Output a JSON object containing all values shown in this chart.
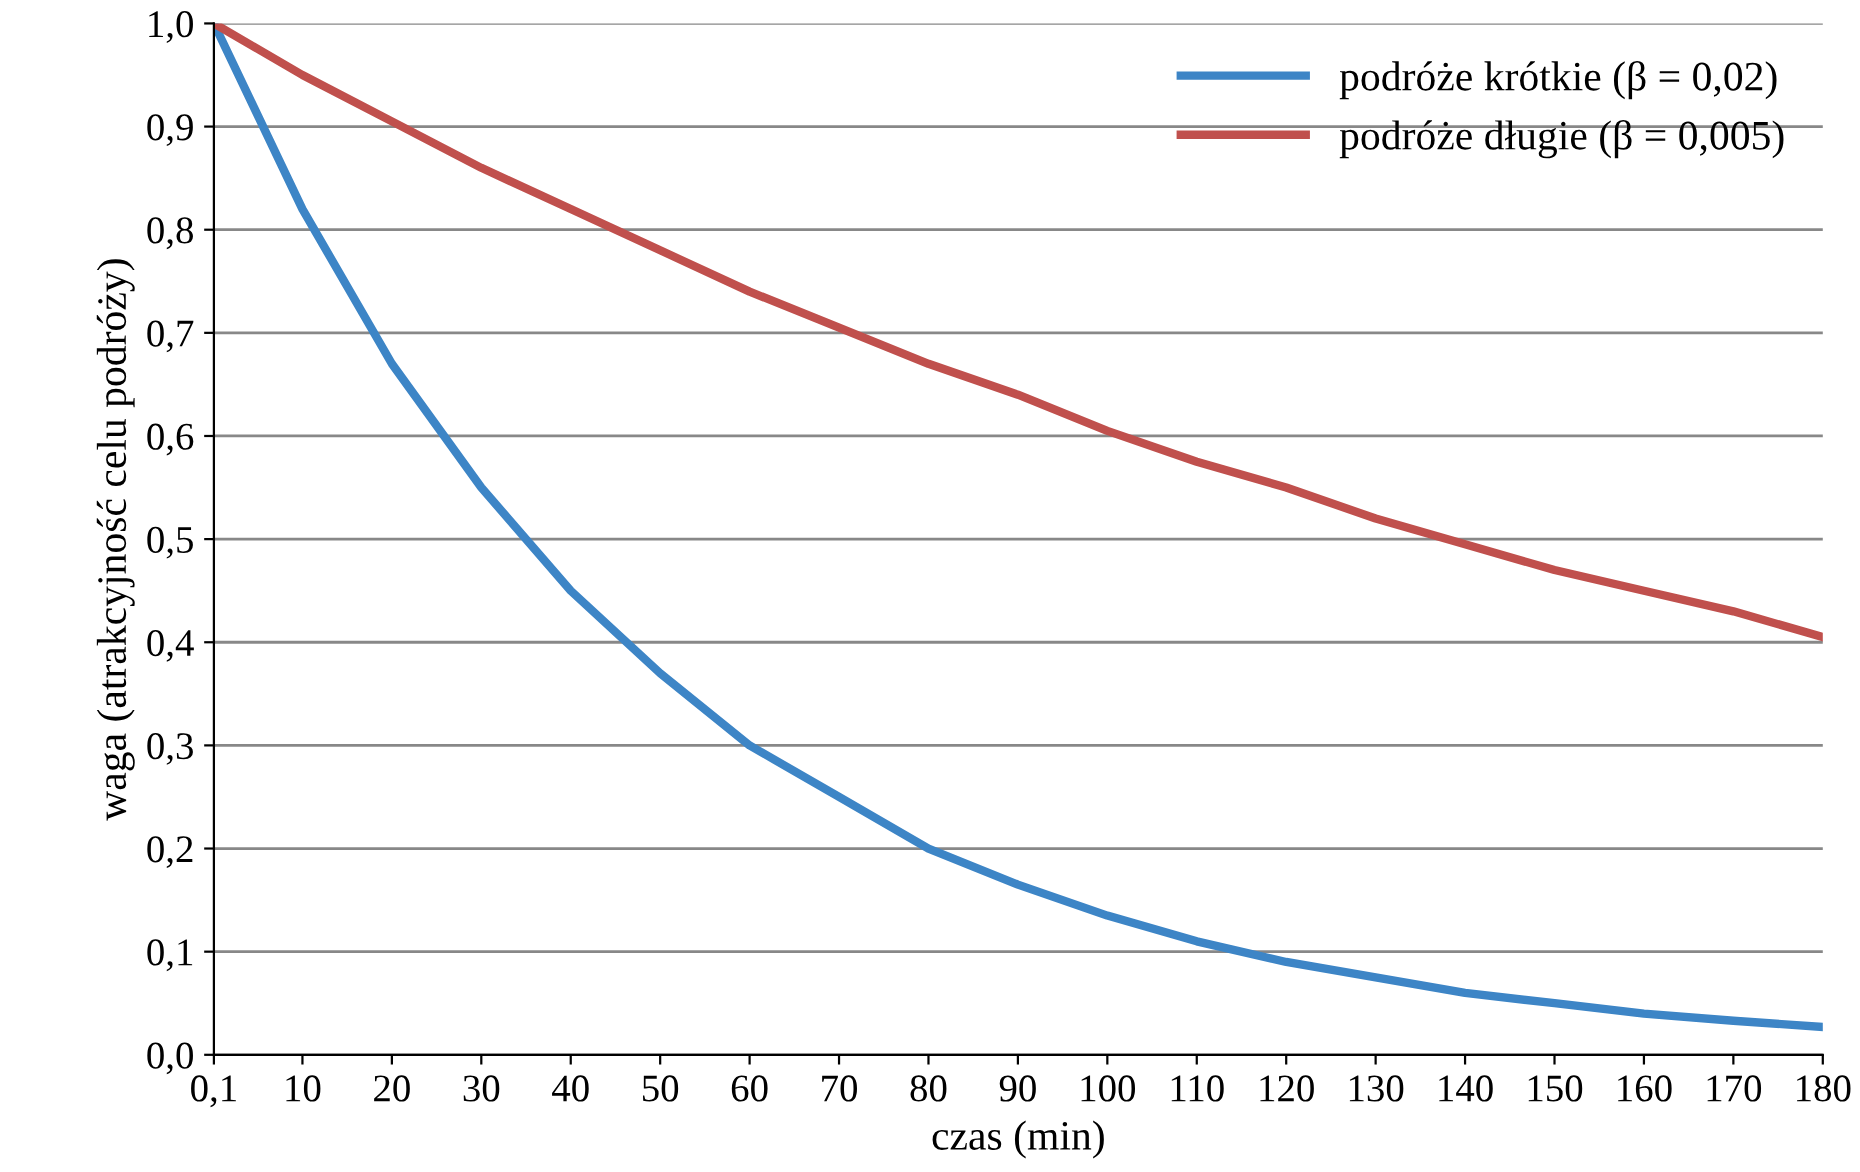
{
  "chart_data": {
    "type": "line",
    "xlabel": "czas (min)",
    "ylabel": "waga (atrakcyjność celu podróży)",
    "x": [
      0.1,
      10,
      20,
      30,
      40,
      50,
      60,
      70,
      80,
      90,
      100,
      110,
      120,
      130,
      140,
      150,
      160,
      170,
      180
    ],
    "series": [
      {
        "name": "podróże krótkie (β = 0,02)",
        "color": "#3d85c6",
        "values": [
          1.0,
          0.82,
          0.67,
          0.55,
          0.45,
          0.37,
          0.3,
          0.25,
          0.2,
          0.165,
          0.135,
          0.11,
          0.09,
          0.075,
          0.06,
          0.05,
          0.04,
          0.033,
          0.027
        ]
      },
      {
        "name": "podróże długie (β = 0,005)",
        "color": "#c0504d",
        "values": [
          1.0,
          0.95,
          0.905,
          0.86,
          0.82,
          0.78,
          0.74,
          0.705,
          0.67,
          0.64,
          0.605,
          0.575,
          0.55,
          0.52,
          0.495,
          0.47,
          0.45,
          0.43,
          0.405
        ]
      }
    ],
    "xlim": [
      0.1,
      180
    ],
    "xticks": [
      {
        "value": 0.1,
        "label": "0,1"
      },
      10,
      20,
      30,
      40,
      50,
      60,
      70,
      80,
      90,
      100,
      110,
      120,
      130,
      140,
      150,
      160,
      170,
      180
    ],
    "ylim": [
      0,
      1
    ],
    "yticks": [
      {
        "value": 0,
        "label": "0,0"
      },
      {
        "value": 0.1,
        "label": "0,1"
      },
      {
        "value": 0.2,
        "label": "0,2"
      },
      {
        "value": 0.3,
        "label": "0,3"
      },
      {
        "value": 0.4,
        "label": "0,4"
      },
      {
        "value": 0.5,
        "label": "0,5"
      },
      {
        "value": 0.6,
        "label": "0,6"
      },
      {
        "value": 0.7,
        "label": "0,7"
      },
      {
        "value": 0.8,
        "label": "0,8"
      },
      {
        "value": 0.9,
        "label": "0,9"
      },
      {
        "value": 1,
        "label": "1,0"
      }
    ],
    "grid": "y",
    "legend": "top right",
    "marker": "none",
    "line_style": "solid"
  }
}
